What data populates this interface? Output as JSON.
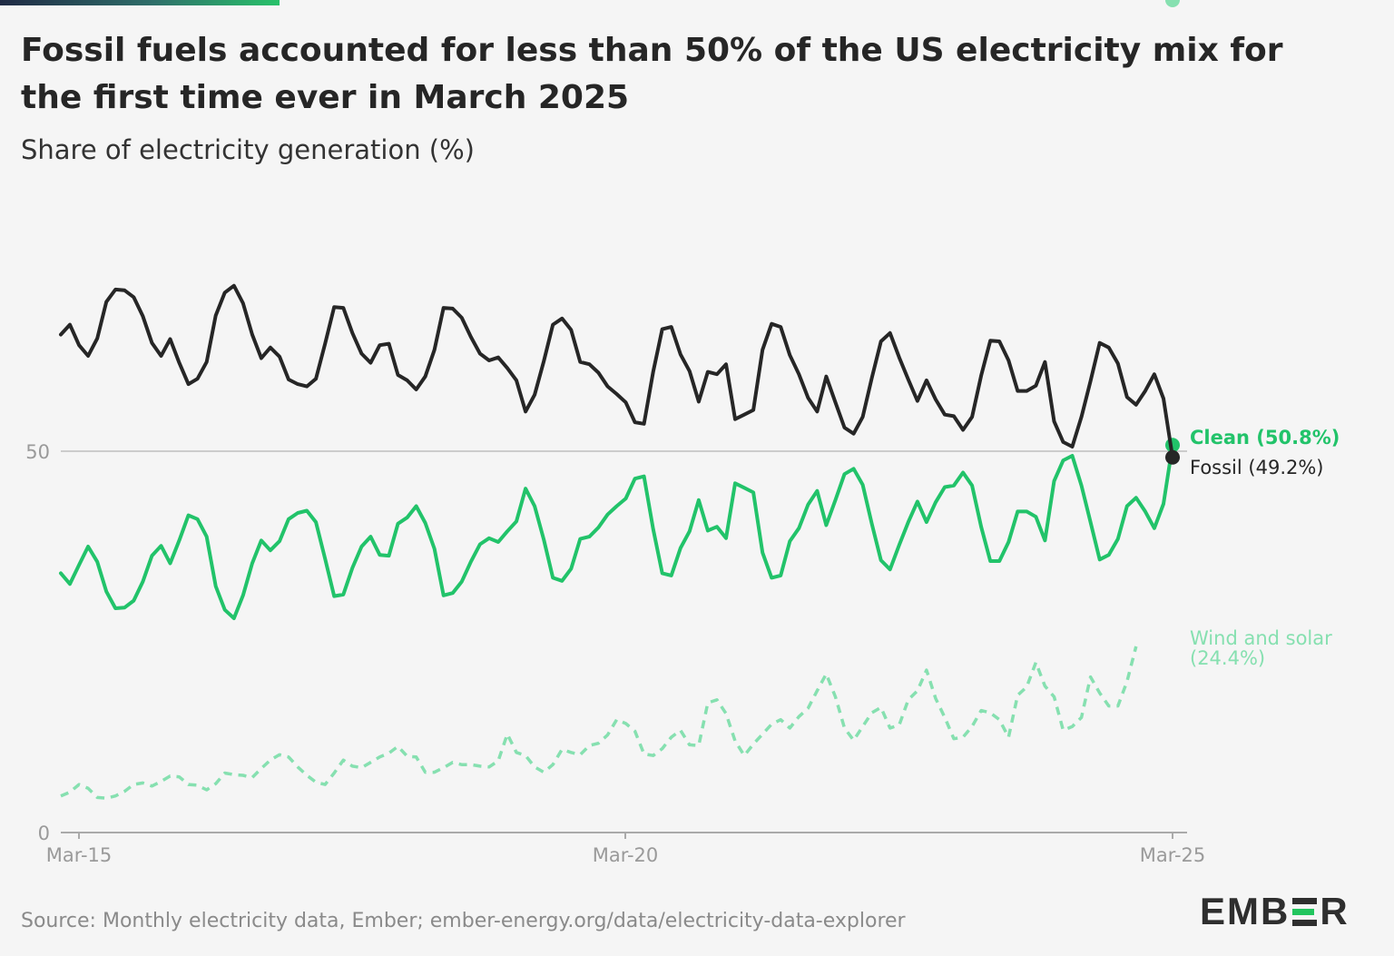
{
  "header": {
    "title": "Fossil fuels accounted for less than 50% of the US electricity mix for the first time ever in March 2025",
    "subtitle": "Share of electricity generation (%)"
  },
  "footer": {
    "source": "Source: Monthly electricity data, Ember; ember-energy.org/data/electricity-data-explorer",
    "logo_left": "EMB",
    "logo_right": "R"
  },
  "colors": {
    "fossil": "#262626",
    "clean": "#22c36a",
    "wind_solar": "#86e0b0",
    "grid": "#cccccc"
  },
  "chart_data": {
    "type": "line",
    "title": "Fossil fuels accounted for less than 50% of the US electricity mix for the first time ever in March 2025",
    "ylabel": "Share of electricity generation (%)",
    "x_start": "Mar-15",
    "x_end": "Mar-25",
    "x_ticks": [
      "Mar-15",
      "Mar-20",
      "Mar-25"
    ],
    "y_ticks": [
      0,
      50
    ],
    "ylim": [
      0,
      72
    ],
    "gridline": 50,
    "series": [
      {
        "name": "Clean (50.8%)",
        "style": "solid",
        "values": [
          34,
          32.6,
          35.1,
          37.5,
          35.5,
          31.6,
          29.4,
          29.5,
          30.4,
          32.9,
          36.3,
          37.6,
          35.3,
          38.3,
          41.6,
          41.1,
          38.8,
          32.3,
          29.2,
          28.1,
          31.1,
          35.3,
          38.3,
          37,
          38.2,
          41.1,
          41.9,
          42.2,
          40.7,
          35.9,
          31,
          31.2,
          34.7,
          37.5,
          38.8,
          36.4,
          36.3,
          40.5,
          41.3,
          42.8,
          40.6,
          37.2,
          31.1,
          31.4,
          32.9,
          35.5,
          37.8,
          38.6,
          38.1,
          39.5,
          40.8,
          45.1,
          42.8,
          38.4,
          33.4,
          33,
          34.6,
          38.5,
          38.8,
          40,
          41.7,
          42.8,
          43.8,
          46.4,
          46.7,
          39.8,
          34,
          33.7,
          37.3,
          39.5,
          43.6,
          39.6,
          40.1,
          38.6,
          45.8,
          45.2,
          44.6,
          36.7,
          33.4,
          33.7,
          38.2,
          39.9,
          43,
          44.8,
          40.3,
          43.6,
          47,
          47.7,
          45.6,
          40.5,
          35.7,
          34.5,
          37.7,
          40.7,
          43.4,
          40.7,
          43.3,
          45.3,
          45.5,
          47.2,
          45.5,
          40.1,
          35.6,
          35.6,
          38.1,
          42.1,
          42.1,
          41.4,
          38.3,
          46.1,
          48.8,
          49.4,
          45.5,
          40.7,
          35.8,
          36.4,
          38.5,
          42.8,
          43.9,
          42.1,
          39.9,
          43.1,
          50.8
        ]
      },
      {
        "name": "Fossil (49.2%)",
        "style": "solid",
        "values": [
          65.3,
          66.6,
          63.9,
          62.5,
          64.8,
          69.6,
          71.2,
          71.1,
          70.2,
          67.7,
          64.2,
          62.5,
          64.7,
          61.6,
          58.8,
          59.5,
          61.7,
          67.8,
          70.8,
          71.7,
          69.4,
          65.3,
          62.2,
          63.6,
          62.4,
          59.4,
          58.8,
          58.5,
          59.5,
          64.1,
          68.9,
          68.8,
          65.5,
          62.8,
          61.6,
          63.9,
          64.1,
          60,
          59.3,
          58.1,
          59.8,
          63.3,
          68.8,
          68.7,
          67.5,
          65,
          62.8,
          61.9,
          62.3,
          60.9,
          59.3,
          55.2,
          57.4,
          61.8,
          66.6,
          67.4,
          65.9,
          61.7,
          61.4,
          60.3,
          58.5,
          57.5,
          56.4,
          53.8,
          53.6,
          60.4,
          66,
          66.3,
          62.7,
          60.5,
          56.5,
          60.4,
          60.1,
          61.4,
          54.2,
          54.8,
          55.4,
          63.3,
          66.7,
          66.3,
          62.6,
          60.1,
          57,
          55.2,
          59.8,
          56.4,
          53.1,
          52.3,
          54.5,
          59.6,
          64.4,
          65.5,
          62.3,
          59.4,
          56.6,
          59.3,
          56.8,
          54.8,
          54.6,
          52.8,
          54.5,
          59.9,
          64.5,
          64.4,
          61.9,
          57.9,
          57.9,
          58.6,
          61.7,
          53.9,
          51.2,
          50.6,
          54.5,
          59.2,
          64.2,
          63.6,
          61.5,
          57.1,
          56.1,
          57.9,
          60.1,
          56.9,
          49.2
        ]
      },
      {
        "name": "Wind and solar (24.4%)",
        "style": "dashed",
        "values": [
          4.8,
          5.3,
          6.3,
          5.8,
          4.6,
          4.5,
          4.8,
          5.4,
          6.3,
          6.5,
          6.1,
          6.7,
          7.4,
          7.3,
          6.3,
          6.2,
          5.6,
          6.4,
          7.8,
          7.6,
          7.5,
          7.2,
          8.4,
          9.5,
          10.2,
          9.9,
          8.6,
          7.5,
          6.6,
          6.3,
          7.8,
          9.5,
          8.7,
          8.5,
          9.2,
          9.9,
          10.4,
          11.3,
          10,
          9.9,
          7.9,
          7.9,
          8.5,
          9.2,
          8.9,
          8.9,
          8.7,
          8.6,
          9.4,
          12.9,
          10.5,
          10.1,
          8.6,
          7.9,
          8.9,
          10.9,
          10.5,
          10.2,
          11.4,
          11.7,
          12.8,
          14.8,
          14.3,
          13.3,
          10.3,
          10.1,
          11,
          12.5,
          13.4,
          11.5,
          11.4,
          17,
          17.4,
          15.6,
          12,
          10.1,
          11.6,
          12.9,
          14.2,
          14.8,
          13.7,
          15.2,
          16.3,
          18.6,
          20.8,
          17.8,
          13.7,
          12.1,
          13.9,
          15.7,
          16.4,
          13.7,
          14.1,
          17.4,
          18.6,
          21.3,
          17.6,
          15.1,
          12.3,
          12.5,
          13.9,
          16,
          15.7,
          14.8,
          12.5,
          18,
          19.1,
          22.3,
          19.2,
          17.8,
          13.4,
          13.9,
          15.1,
          20.4,
          18.3,
          16.6,
          16.6,
          19.8,
          24.4
        ]
      }
    ]
  }
}
